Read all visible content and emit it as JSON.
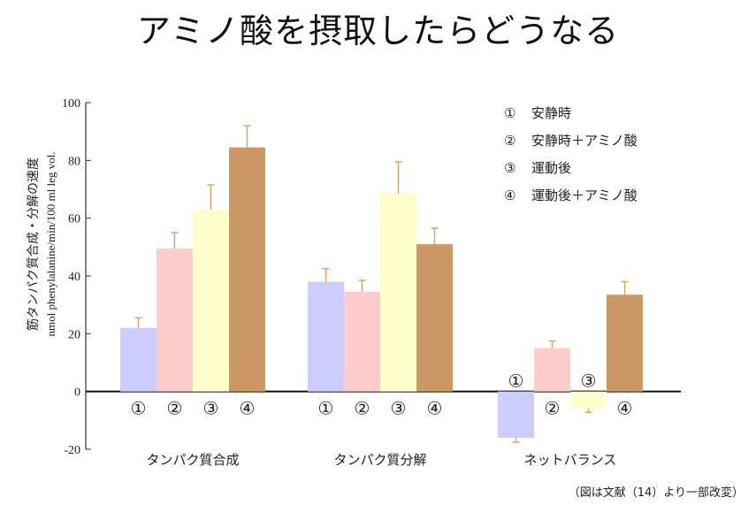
{
  "title": "アミノ酸を摂取したらどうなる",
  "citation": "（図は文献（14）より一部改変）",
  "chart_data": {
    "type": "bar",
    "categories": [
      "タンパク質合成",
      "タンパク質分解",
      "ネットバランス"
    ],
    "series": [
      {
        "name": "安静時",
        "marker": "①",
        "color": "#ccccff",
        "values": [
          22,
          38,
          -16
        ],
        "errors": [
          3.5,
          4.5,
          1.5
        ]
      },
      {
        "name": "安静時＋アミノ酸",
        "marker": "②",
        "color": "#ffcccc",
        "values": [
          49.5,
          34.5,
          15
        ],
        "errors": [
          5.5,
          4,
          2.5
        ]
      },
      {
        "name": "運動後",
        "marker": "③",
        "color": "#ffffcc",
        "values": [
          63,
          68.5,
          -6
        ],
        "errors": [
          8.5,
          11,
          1.2
        ]
      },
      {
        "name": "運動後＋アミノ酸",
        "marker": "④",
        "color": "#cc9966",
        "values": [
          84.5,
          51,
          33.5
        ],
        "errors": [
          7.5,
          5.5,
          4.5
        ]
      }
    ],
    "ylabel": "筋タンパク質合成・分解の速度",
    "ylabel_unit": "nmol phenylalanine/min/100 ml leg vol.",
    "ylim": [
      -20,
      100
    ],
    "yticks": [
      "100",
      "80",
      "60",
      "40",
      "20",
      "0",
      "-20"
    ],
    "ytick_values": [
      100,
      80,
      60,
      40,
      20,
      0,
      -20
    ],
    "legend_position": "top-right",
    "grid": false,
    "error_bar_color": "#e0a060"
  }
}
